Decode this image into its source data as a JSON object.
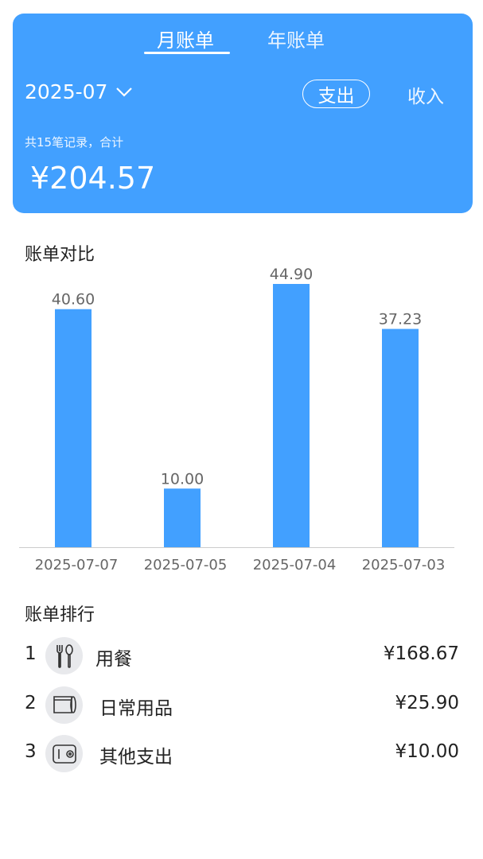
{
  "header": {
    "tabs": [
      {
        "label": "月账单",
        "active": true
      },
      {
        "label": "年账单",
        "active": false
      }
    ],
    "month": "2025-07",
    "type_toggle": {
      "expense": "支出",
      "income": "收入",
      "selected": "支出"
    },
    "summary": "共15笔记录，合计",
    "total": "¥204.57"
  },
  "colors": {
    "accent": "#42a0ff",
    "bar": "#42a0ff"
  },
  "compare": {
    "title": "账单对比"
  },
  "chart_data": {
    "type": "bar",
    "categories": [
      "2025-07-07",
      "2025-07-05",
      "2025-07-04",
      "2025-07-03"
    ],
    "values": [
      40.6,
      10.0,
      44.9,
      37.23
    ],
    "data_labels": [
      "40.60",
      "10.00",
      "44.90",
      "37.23"
    ],
    "ylim": [
      0,
      44.9
    ],
    "grid": false
  },
  "ranking": {
    "title": "账单排行",
    "items": [
      {
        "rank": "1",
        "icon": "fork-spoon-icon",
        "name": "用餐",
        "amount": "¥168.67"
      },
      {
        "rank": "2",
        "icon": "tissue-roll-icon",
        "name": "日常用品",
        "amount": "¥25.90"
      },
      {
        "rank": "3",
        "icon": "wallet-icon",
        "name": "其他支出",
        "amount": "¥10.00"
      }
    ]
  }
}
